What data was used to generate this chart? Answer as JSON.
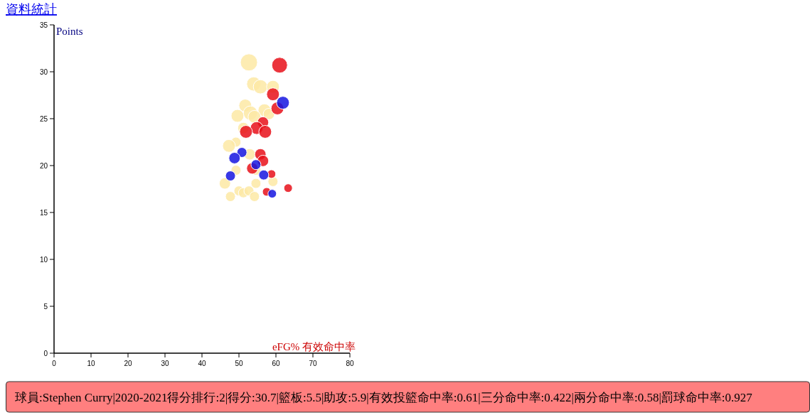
{
  "chart_data": {
    "type": "bubble",
    "title": "資料統計",
    "xlabel": "eFG% 有效命中率",
    "ylabel": "Points",
    "xlim": [
      0,
      80
    ],
    "ylim": [
      0,
      35
    ],
    "xticks": [
      0,
      10,
      20,
      30,
      40,
      50,
      60,
      70,
      80
    ],
    "yticks": [
      0,
      5,
      10,
      15,
      20,
      25,
      30,
      35
    ],
    "annotations": [
      "球員:Stephen Curry|2020-2021得分排行:2|得分:30.7|籃板:5.5|助攻:5.9|有效投籃命中率:0.61|三分命中率:0.422|兩分命中率:0.58|罰球命中率:0.927"
    ],
    "series": [
      {
        "color": "#fde9a4",
        "x": [
          52.7,
          54.0,
          55.8,
          59.2,
          51.7,
          53.1,
          56.9,
          58.1,
          49.6,
          54.2,
          51.2,
          49.2,
          47.3,
          52.9,
          49.2,
          46.2,
          50.0,
          47.7,
          51.2,
          52.7,
          54.2,
          54.6,
          59.2,
          54.6
        ],
        "values": [
          31.0,
          28.7,
          28.4,
          28.4,
          26.4,
          25.6,
          25.9,
          25.5,
          25.3,
          25.2,
          24.0,
          22.5,
          22.1,
          21.2,
          19.5,
          18.1,
          17.3,
          16.7,
          17.1,
          17.3,
          16.7,
          18.1,
          18.3,
          19.5
        ],
        "sizes": [
          1,
          0.69,
          0.69,
          0.56,
          0.56,
          0.69,
          0.56,
          0.44,
          0.56,
          0.56,
          0.44,
          0.34,
          0.56,
          0.44,
          0.34,
          0.44,
          0.34,
          0.34,
          0.34,
          0.34,
          0.34,
          0.34,
          0.34,
          0.34
        ]
      },
      {
        "color": "#e8101a",
        "x": [
          61.0,
          59.2,
          60.4,
          56.5,
          54.8,
          51.9,
          57.1,
          55.8,
          56.5,
          53.6,
          58.8,
          57.5,
          63.3
        ],
        "values": [
          30.7,
          27.6,
          26.1,
          24.6,
          24.0,
          23.6,
          23.6,
          21.2,
          20.5,
          19.7,
          19.1,
          17.2,
          17.6
        ],
        "sizes": [
          0.84,
          0.56,
          0.56,
          0.44,
          0.56,
          0.56,
          0.56,
          0.44,
          0.44,
          0.44,
          0.25,
          0.25,
          0.25
        ]
      },
      {
        "color": "#1515e0",
        "x": [
          61.9,
          50.8,
          48.8,
          54.6,
          47.7,
          56.7,
          59.0
        ],
        "values": [
          26.7,
          21.4,
          20.8,
          20.1,
          18.9,
          19.0,
          17.0
        ],
        "sizes": [
          0.56,
          0.34,
          0.44,
          0.34,
          0.34,
          0.34,
          0.25
        ]
      }
    ]
  }
}
